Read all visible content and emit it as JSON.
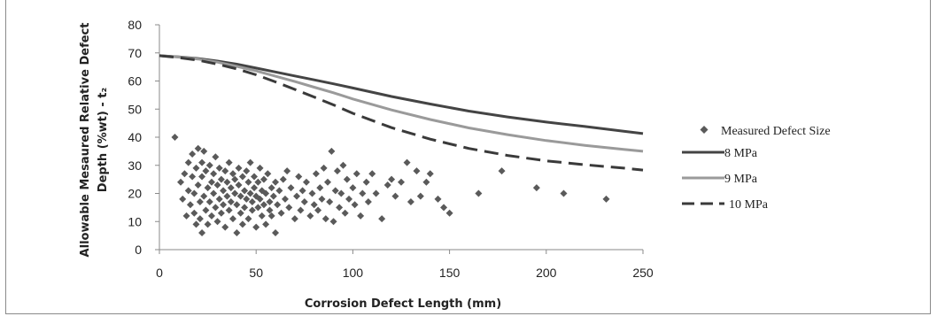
{
  "chart_data": {
    "type": "scatter",
    "title": "",
    "xlabel": "Corrosion Defect Length (mm)",
    "ylabel": "Allowable Mesaured Relative Defect Depth (%wt) - t₂",
    "ylabel_line1": "Allowable Mesaured Relative Defect",
    "ylabel_line2": "Depth (%wt) - t₂",
    "xlim": [
      0,
      250
    ],
    "ylim": [
      0,
      80
    ],
    "x_ticks": [
      "0",
      "50",
      "100",
      "150",
      "200",
      "250"
    ],
    "y_ticks": [
      "0",
      "10",
      "20",
      "30",
      "40",
      "50",
      "60",
      "70",
      "80"
    ],
    "grid": false,
    "legend_position": "right",
    "series": [
      {
        "name": "Measured Defect Size",
        "kind": "scatter",
        "marker": "diamond",
        "color": "#5a5a5a",
        "points": [
          [
            8,
            40
          ],
          [
            11,
            24
          ],
          [
            12,
            18
          ],
          [
            13,
            27
          ],
          [
            14,
            12
          ],
          [
            15,
            21
          ],
          [
            15,
            31
          ],
          [
            16,
            16
          ],
          [
            17,
            26
          ],
          [
            17,
            34
          ],
          [
            18,
            13
          ],
          [
            18,
            20
          ],
          [
            19,
            29
          ],
          [
            19,
            9
          ],
          [
            20,
            23
          ],
          [
            20,
            36
          ],
          [
            21,
            17
          ],
          [
            21,
            11
          ],
          [
            22,
            31
          ],
          [
            22,
            26
          ],
          [
            22,
            6
          ],
          [
            23,
            19
          ],
          [
            23,
            35
          ],
          [
            24,
            14
          ],
          [
            24,
            28
          ],
          [
            25,
            22
          ],
          [
            25,
            9
          ],
          [
            26,
            30
          ],
          [
            26,
            17
          ],
          [
            27,
            24
          ],
          [
            27,
            12
          ],
          [
            28,
            20
          ],
          [
            28,
            27
          ],
          [
            29,
            15
          ],
          [
            29,
            33
          ],
          [
            30,
            10
          ],
          [
            30,
            23
          ],
          [
            31,
            18
          ],
          [
            31,
            29
          ],
          [
            32,
            25
          ],
          [
            32,
            13
          ],
          [
            33,
            21
          ],
          [
            33,
            16
          ],
          [
            34,
            28
          ],
          [
            34,
            8
          ],
          [
            35,
            19
          ],
          [
            35,
            24
          ],
          [
            36,
            14
          ],
          [
            36,
            31
          ],
          [
            37,
            22
          ],
          [
            37,
            17
          ],
          [
            38,
            27
          ],
          [
            38,
            11
          ],
          [
            39,
            20
          ],
          [
            39,
            25
          ],
          [
            40,
            6
          ],
          [
            40,
            16
          ],
          [
            41,
            23
          ],
          [
            41,
            29
          ],
          [
            42,
            13
          ],
          [
            42,
            19
          ],
          [
            43,
            26
          ],
          [
            43,
            9
          ],
          [
            44,
            21
          ],
          [
            44,
            15
          ],
          [
            45,
            28
          ],
          [
            45,
            18
          ],
          [
            46,
            24
          ],
          [
            46,
            11
          ],
          [
            47,
            20
          ],
          [
            47,
            31
          ],
          [
            48,
            14
          ],
          [
            48,
            17
          ],
          [
            49,
            26
          ],
          [
            49,
            22
          ],
          [
            50,
            19
          ],
          [
            50,
            8
          ],
          [
            51,
            24
          ],
          [
            51,
            15
          ],
          [
            52,
            18
          ],
          [
            52,
            29
          ],
          [
            53,
            12
          ],
          [
            53,
            21
          ],
          [
            54,
            16
          ],
          [
            54,
            25
          ],
          [
            55,
            20
          ],
          [
            55,
            9
          ],
          [
            56,
            27
          ],
          [
            57,
            17
          ],
          [
            57,
            14
          ],
          [
            58,
            22
          ],
          [
            58,
            12
          ],
          [
            59,
            19
          ],
          [
            60,
            6
          ],
          [
            60,
            24
          ],
          [
            61,
            16
          ],
          [
            62,
            21
          ],
          [
            63,
            13
          ],
          [
            64,
            25
          ],
          [
            65,
            18
          ],
          [
            66,
            28
          ],
          [
            67,
            15
          ],
          [
            68,
            22
          ],
          [
            70,
            11
          ],
          [
            71,
            19
          ],
          [
            72,
            26
          ],
          [
            73,
            14
          ],
          [
            74,
            21
          ],
          [
            75,
            17
          ],
          [
            76,
            24
          ],
          [
            78,
            12
          ],
          [
            79,
            20
          ],
          [
            80,
            16
          ],
          [
            81,
            27
          ],
          [
            82,
            14
          ],
          [
            83,
            22
          ],
          [
            84,
            18
          ],
          [
            85,
            29
          ],
          [
            86,
            11
          ],
          [
            87,
            24
          ],
          [
            88,
            17
          ],
          [
            89,
            35
          ],
          [
            90,
            10
          ],
          [
            91,
            21
          ],
          [
            92,
            28
          ],
          [
            93,
            15
          ],
          [
            94,
            20
          ],
          [
            95,
            30
          ],
          [
            96,
            13
          ],
          [
            97,
            25
          ],
          [
            98,
            18
          ],
          [
            100,
            22
          ],
          [
            101,
            16
          ],
          [
            102,
            27
          ],
          [
            104,
            12
          ],
          [
            105,
            20
          ],
          [
            107,
            24
          ],
          [
            108,
            17
          ],
          [
            110,
            27
          ],
          [
            112,
            20
          ],
          [
            115,
            11
          ],
          [
            118,
            23
          ],
          [
            120,
            25
          ],
          [
            122,
            19
          ],
          [
            125,
            24
          ],
          [
            128,
            31
          ],
          [
            130,
            17
          ],
          [
            133,
            28
          ],
          [
            135,
            19
          ],
          [
            138,
            24
          ],
          [
            140,
            27
          ],
          [
            144,
            18
          ],
          [
            147,
            15
          ],
          [
            150,
            13
          ],
          [
            165,
            20
          ],
          [
            177,
            28
          ],
          [
            195,
            22
          ],
          [
            209,
            20
          ],
          [
            231,
            18
          ]
        ]
      },
      {
        "name": "8 MPa",
        "kind": "line",
        "color": "#444444",
        "dash": "solid",
        "x": [
          0,
          10,
          20,
          30,
          40,
          50,
          60,
          70,
          80,
          90,
          100,
          120,
          140,
          160,
          180,
          200,
          220,
          240,
          250
        ],
        "y": [
          69,
          68.6,
          68,
          67.1,
          66,
          64.6,
          63.2,
          61.8,
          60.4,
          59,
          57.5,
          54.5,
          51.8,
          49.3,
          47.2,
          45.4,
          43.8,
          42.1,
          41.3
        ]
      },
      {
        "name": "9 MPa",
        "kind": "line",
        "color": "#9a9a9a",
        "dash": "solid",
        "x": [
          0,
          10,
          20,
          30,
          40,
          50,
          60,
          70,
          80,
          90,
          100,
          120,
          140,
          160,
          180,
          200,
          220,
          240,
          250
        ],
        "y": [
          69,
          68.5,
          67.8,
          66.7,
          65.2,
          63.6,
          61.7,
          59.8,
          57.8,
          55.8,
          53.6,
          49.7,
          46.3,
          43.3,
          40.9,
          38.8,
          37.1,
          35.7,
          35
        ]
      },
      {
        "name": "10 MPa",
        "kind": "line",
        "color": "#3a3a3a",
        "dash": "dashed",
        "x": [
          0,
          10,
          20,
          30,
          40,
          50,
          60,
          70,
          80,
          90,
          100,
          120,
          140,
          160,
          180,
          200,
          220,
          240,
          250
        ],
        "y": [
          69,
          68.3,
          67.4,
          66,
          64.3,
          62.2,
          59.7,
          57,
          54.3,
          51.5,
          48.5,
          43.4,
          39.3,
          36,
          33.5,
          31.6,
          30.2,
          29,
          28.3
        ]
      }
    ]
  }
}
